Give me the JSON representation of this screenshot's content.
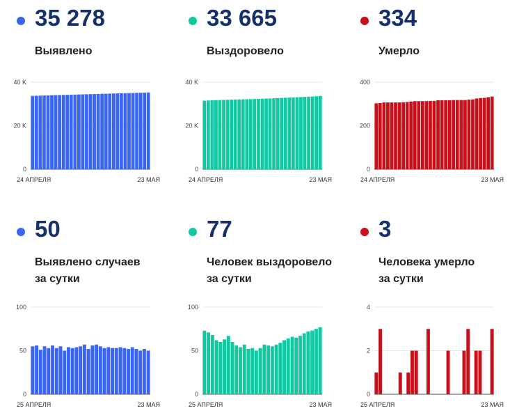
{
  "colors": {
    "blue": "#3a66f3",
    "green": "#10c9a0",
    "red": "#c8101a",
    "number": "#15306b"
  },
  "panels": [
    {
      "number": "35 278",
      "label": [
        "Выявлено"
      ],
      "color": "blue",
      "chart_data": {
        "type": "bar",
        "ylim": [
          0,
          40000
        ],
        "yticks": [
          0,
          20000,
          40000
        ],
        "ytick_labels": [
          "0",
          "20 K",
          "40 K"
        ],
        "x_start_label": "24 АПРЕЛЯ",
        "x_end_label": "23 МАЯ",
        "values": [
          33700,
          33760,
          33820,
          33880,
          33940,
          34000,
          34050,
          34100,
          34150,
          34200,
          34250,
          34300,
          34350,
          34400,
          34450,
          34500,
          34550,
          34600,
          34650,
          34700,
          34750,
          34800,
          34850,
          34900,
          34950,
          35000,
          35060,
          35120,
          35180,
          35230,
          35278
        ]
      }
    },
    {
      "number": "33 665",
      "label": [
        "Выздоровело"
      ],
      "color": "green",
      "chart_data": {
        "type": "bar",
        "ylim": [
          0,
          40000
        ],
        "yticks": [
          0,
          20000,
          40000
        ],
        "ytick_labels": [
          "0",
          "20 K",
          "40 K"
        ],
        "x_start_label": "24 АПРЕЛЯ",
        "x_end_label": "23 МАЯ",
        "values": [
          31500,
          31600,
          31680,
          31750,
          31800,
          31870,
          31930,
          31980,
          32030,
          32080,
          32130,
          32180,
          32230,
          32290,
          32350,
          32410,
          32480,
          32540,
          32610,
          32690,
          32770,
          32850,
          32940,
          33020,
          33100,
          33180,
          33260,
          33340,
          33420,
          33520,
          33665
        ]
      }
    },
    {
      "number": "334",
      "label": [
        "Умерло"
      ],
      "color": "red",
      "chart_data": {
        "type": "bar",
        "ylim": [
          0,
          400
        ],
        "yticks": [
          0,
          200,
          400
        ],
        "ytick_labels": [
          "0",
          "200",
          "400"
        ],
        "x_start_label": "24 АПРЕЛЯ",
        "x_end_label": "23 МАЯ",
        "values": [
          303,
          304,
          307,
          307,
          307,
          307,
          307,
          308,
          309,
          311,
          313,
          313,
          313,
          313,
          314,
          314,
          317,
          317,
          317,
          317,
          318,
          318,
          318,
          318,
          320,
          321,
          325,
          327,
          328,
          331,
          334
        ]
      }
    },
    {
      "number": "50",
      "label": [
        "Выявлено случаев",
        "за сутки"
      ],
      "color": "blue",
      "chart_data": {
        "type": "bar",
        "ylim": [
          0,
          100
        ],
        "yticks": [
          0,
          50,
          100
        ],
        "ytick_labels": [
          "0",
          "50",
          "100"
        ],
        "x_start_label": "25 АПРЕЛЯ",
        "x_end_label": "23 МАЯ",
        "values": [
          55,
          56,
          51,
          55,
          53,
          56,
          53,
          55,
          50,
          54,
          53,
          54,
          55,
          57,
          52,
          56,
          57,
          55,
          53,
          54,
          53,
          53,
          54,
          53,
          52,
          54,
          52,
          50,
          52,
          50
        ]
      }
    },
    {
      "number": "77",
      "label": [
        "Человек выздоровело",
        "за сутки"
      ],
      "color": "green",
      "chart_data": {
        "type": "bar",
        "ylim": [
          0,
          100
        ],
        "yticks": [
          0,
          50,
          100
        ],
        "ytick_labels": [
          "0",
          "50",
          "100"
        ],
        "x_start_label": "25 АПРЕЛЯ",
        "x_end_label": "23 МАЯ",
        "values": [
          73,
          71,
          68,
          62,
          60,
          63,
          67,
          60,
          56,
          54,
          57,
          52,
          53,
          50,
          53,
          57,
          56,
          55,
          57,
          59,
          62,
          64,
          66,
          65,
          67,
          70,
          72,
          73,
          75,
          77
        ]
      }
    },
    {
      "number": "3",
      "label": [
        "Человека умерло",
        "за сутки"
      ],
      "color": "red",
      "chart_data": {
        "type": "bar",
        "ylim": [
          0,
          4
        ],
        "yticks": [
          0,
          2,
          4
        ],
        "ytick_labels": [
          "0",
          "2",
          "4"
        ],
        "x_start_label": "25 АПРЕЛЯ",
        "x_end_label": "23 МАЯ",
        "values": [
          1,
          3,
          0,
          0,
          0,
          0,
          1,
          0,
          1,
          2,
          2,
          0,
          0,
          3,
          0,
          0,
          0,
          0,
          2,
          0,
          0,
          0,
          2,
          3,
          0,
          2,
          2,
          0,
          0,
          3
        ]
      }
    }
  ]
}
